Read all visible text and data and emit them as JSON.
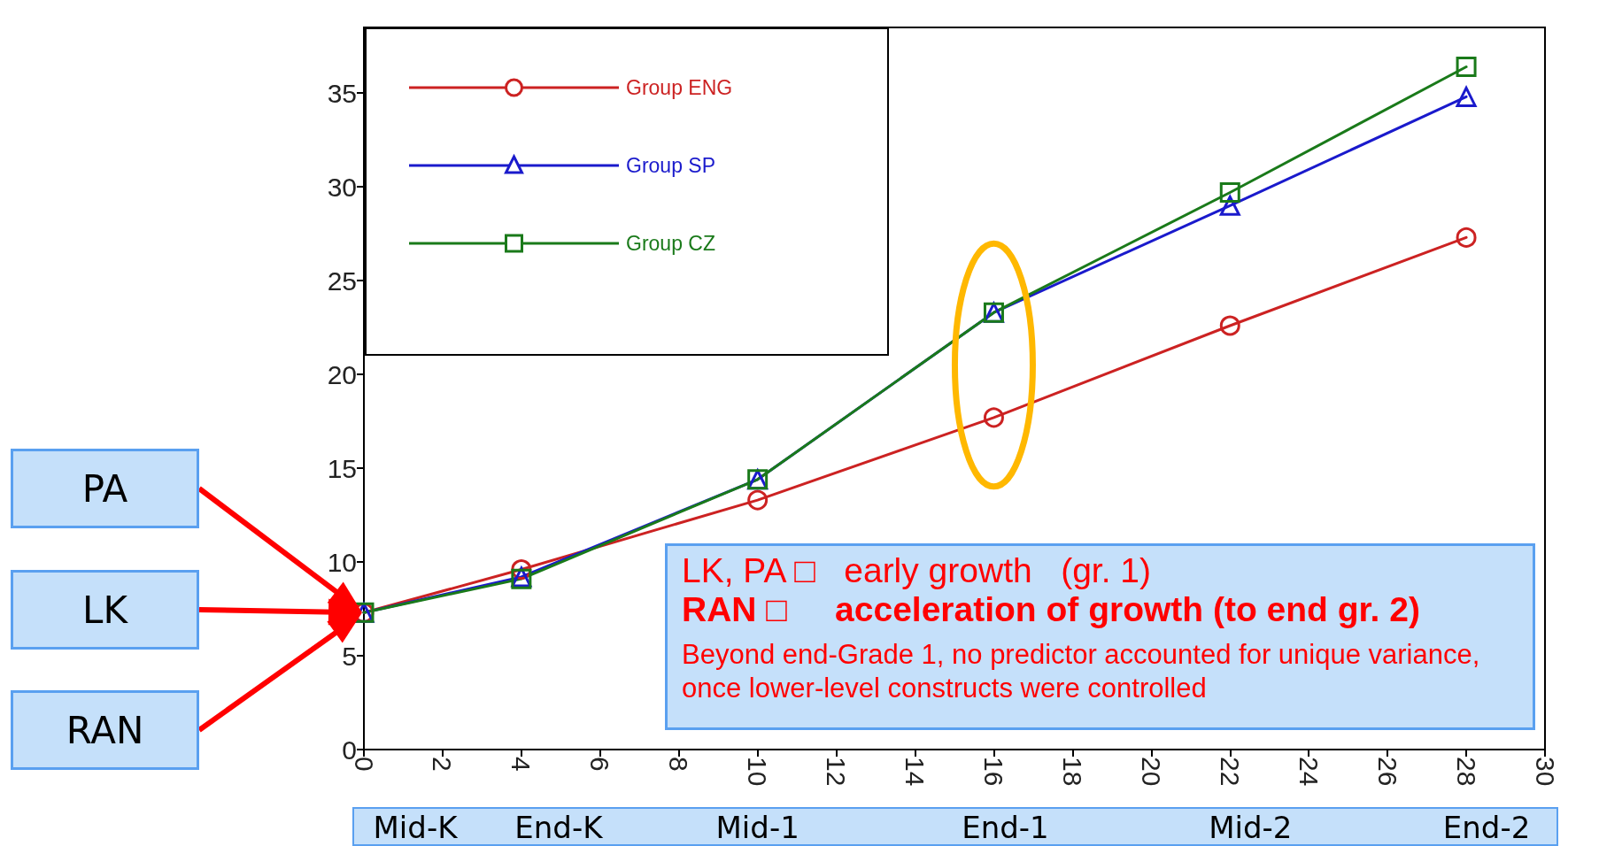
{
  "chart_data": {
    "type": "line",
    "x": [
      0,
      4,
      10,
      16,
      22,
      28
    ],
    "series": [
      {
        "name": "Group ENG",
        "color": "#cc2222",
        "marker": "circle",
        "values": [
          7.3,
          9.6,
          13.3,
          17.7,
          22.6,
          27.3
        ]
      },
      {
        "name": "Group SP",
        "color": "#1a1acc",
        "marker": "triangle",
        "values": [
          7.3,
          9.2,
          14.4,
          23.3,
          29.0,
          34.8
        ]
      },
      {
        "name": "Group CZ",
        "color": "#1a7a1a",
        "marker": "square",
        "values": [
          7.3,
          9.1,
          14.4,
          23.3,
          29.7,
          36.4
        ]
      }
    ],
    "xlim": [
      0,
      30
    ],
    "xticks": [
      0,
      2,
      4,
      6,
      8,
      10,
      12,
      14,
      16,
      18,
      20,
      22,
      24,
      26,
      28,
      30
    ],
    "ylim": [
      0,
      38.5
    ],
    "yticks": [
      0,
      5,
      10,
      15,
      20,
      25,
      30,
      35
    ],
    "legend": "top left",
    "grid": false,
    "line_style": "solid",
    "annotations": [
      "PA",
      "LK",
      "RAN",
      "LK, PA □   early growth   (gr. 1)",
      "RAN □     acceleration of growth (to end gr. 2)",
      "Beyond end-Grade 1, no predictor accounted for unique variance, once lower-level constructs were controlled",
      "Mid-K",
      "End-K",
      "Mid-1",
      "End-1",
      "Mid-2",
      "End-2"
    ]
  }
}
